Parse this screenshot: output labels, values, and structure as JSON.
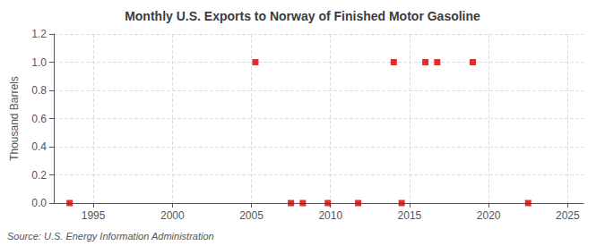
{
  "chart_data": {
    "type": "scatter",
    "title": "Monthly U.S. Exports to Norway of Finished Motor Gasoline",
    "ylabel": "Thousand Barrels",
    "annotation": "Source: U.S. Energy Information Administration",
    "x": [
      1993.5,
      2005.25,
      2007.5,
      2008.25,
      2009.83,
      2011.75,
      2014.0,
      2014.5,
      2016.0,
      2016.75,
      2019.0,
      2022.5
    ],
    "values": [
      0.0,
      1.0,
      0.0,
      0.0,
      0.0,
      0.0,
      1.0,
      0.0,
      1.0,
      1.0,
      1.0,
      0.0
    ],
    "color": "#cc0000",
    "marker": "square",
    "xlim": [
      1992.5,
      2026
    ],
    "ylim": [
      0,
      1.2
    ],
    "xticks": [
      1995,
      2000,
      2005,
      2010,
      2015,
      2020,
      2025
    ],
    "yticks": [
      {
        "value": 0,
        "label": "0.0"
      },
      0.2,
      0.4,
      0.6,
      0.8,
      {
        "value": 1,
        "label": "1.0"
      },
      1.2
    ],
    "grid": true
  }
}
